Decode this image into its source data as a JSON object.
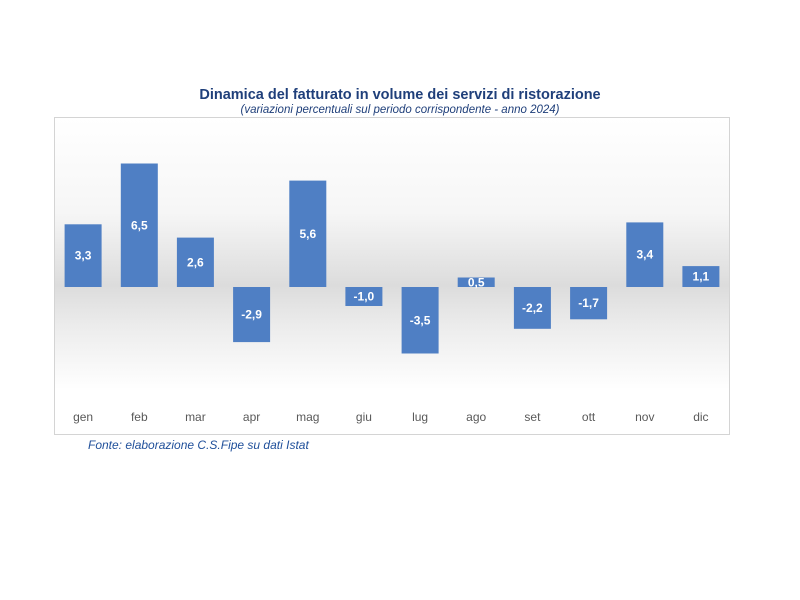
{
  "chart_data": {
    "type": "bar",
    "title": "Dinamica del fatturato in volume dei servizi di ristorazione",
    "subtitle": "(variazioni percentuali sul periodo corrispondente - anno 2024)",
    "categories": [
      "gen",
      "feb",
      "mar",
      "apr",
      "mag",
      "giu",
      "lug",
      "ago",
      "set",
      "ott",
      "nov",
      "dic"
    ],
    "values": [
      3.3,
      6.5,
      2.6,
      -2.9,
      5.6,
      -1.0,
      -3.5,
      0.5,
      -2.2,
      -1.7,
      3.4,
      1.1
    ],
    "value_labels": [
      "3,3",
      "6,5",
      "2,6",
      "-2,9",
      "5,6",
      "-1,0",
      "-3,5",
      "0,5",
      "-2,2",
      "-1,7",
      "3,4",
      "1,1"
    ],
    "ylim": [
      -6.5,
      9
    ],
    "grid": false,
    "legend": "none",
    "bar_color": "#4f7fc4"
  },
  "source_note": "Fonte: elaborazione C.S.Fipe su dati Istat"
}
